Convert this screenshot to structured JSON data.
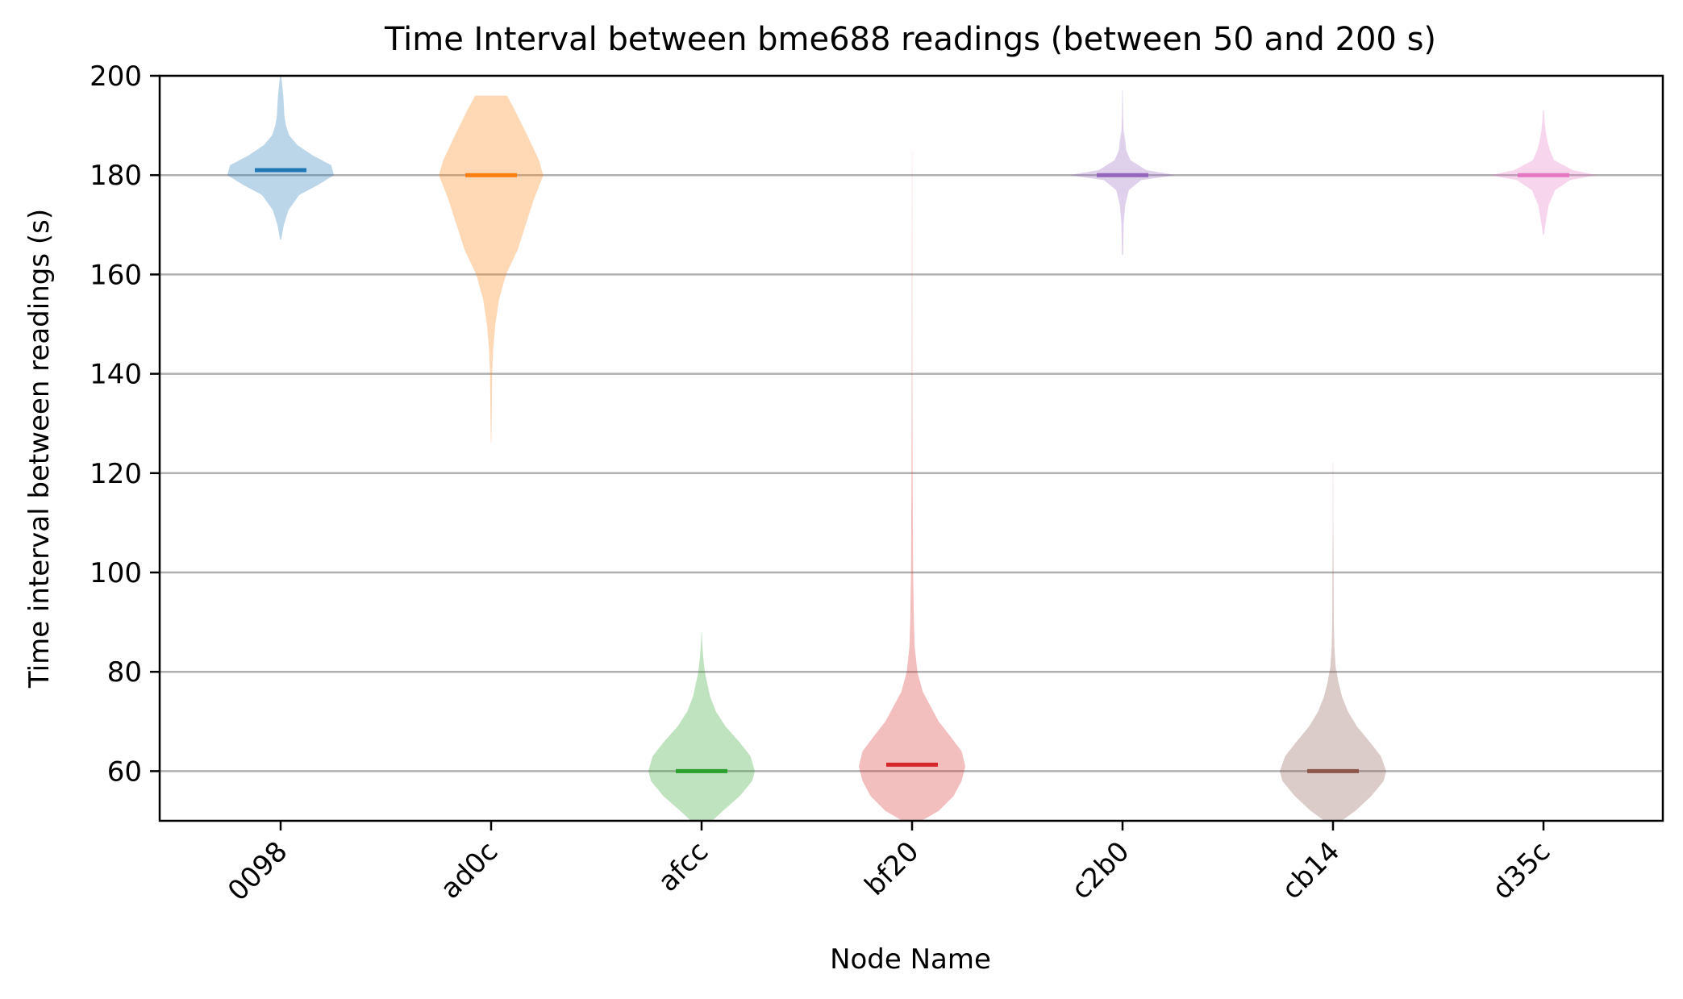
{
  "chart_data": {
    "type": "violin",
    "title": "Time Interval between bme688 readings (between 50 and 200 s)",
    "xlabel": "Node Name",
    "ylabel": "Time interval between readings (s)",
    "ylim": [
      50,
      200
    ],
    "yticks": [
      60,
      80,
      100,
      120,
      140,
      160,
      180,
      200
    ],
    "grid": "horizontal",
    "categories": [
      "0098",
      "ad0c",
      "afcc",
      "bf20",
      "c2b0",
      "cb14",
      "d35c"
    ],
    "medians": [
      181,
      180,
      60,
      61.3,
      180,
      60,
      180
    ],
    "colors": [
      "#1f77b4",
      "#ff7f0e",
      "#2ca02c",
      "#d62728",
      "#9467bd",
      "#8c564b",
      "#e377c2"
    ],
    "violins": [
      {
        "name": "0098",
        "range": [
          167,
          200
        ],
        "profile": [
          [
            167,
            0.01
          ],
          [
            170,
            0.06
          ],
          [
            173,
            0.15
          ],
          [
            176,
            0.35
          ],
          [
            178,
            0.7
          ],
          [
            180,
            1.0
          ],
          [
            182,
            0.95
          ],
          [
            184,
            0.6
          ],
          [
            186,
            0.32
          ],
          [
            188,
            0.16
          ],
          [
            190,
            0.1
          ],
          [
            192,
            0.07
          ],
          [
            194,
            0.06
          ],
          [
            196,
            0.05
          ],
          [
            198,
            0.03
          ],
          [
            200,
            0.01
          ]
        ]
      },
      {
        "name": "ad0c",
        "range": [
          126,
          196
        ],
        "profile": [
          [
            126,
            0.005
          ],
          [
            130,
            0.01
          ],
          [
            135,
            0.015
          ],
          [
            140,
            0.02
          ],
          [
            145,
            0.04
          ],
          [
            150,
            0.08
          ],
          [
            155,
            0.15
          ],
          [
            160,
            0.28
          ],
          [
            165,
            0.5
          ],
          [
            170,
            0.65
          ],
          [
            175,
            0.8
          ],
          [
            180,
            0.98
          ],
          [
            183,
            0.9
          ],
          [
            188,
            0.68
          ],
          [
            193,
            0.45
          ],
          [
            196,
            0.3
          ]
        ]
      },
      {
        "name": "afcc",
        "range": [
          50,
          88
        ],
        "profile": [
          [
            50,
            0.2
          ],
          [
            52,
            0.4
          ],
          [
            55,
            0.72
          ],
          [
            58,
            0.95
          ],
          [
            60,
            1.0
          ],
          [
            63,
            0.92
          ],
          [
            66,
            0.7
          ],
          [
            69,
            0.45
          ],
          [
            72,
            0.27
          ],
          [
            75,
            0.16
          ],
          [
            78,
            0.1
          ],
          [
            80,
            0.06
          ],
          [
            83,
            0.03
          ],
          [
            86,
            0.01
          ],
          [
            88,
            0.005
          ]
        ]
      },
      {
        "name": "bf20",
        "range": [
          50,
          185
        ],
        "profile": [
          [
            50,
            0.18
          ],
          [
            52,
            0.5
          ],
          [
            55,
            0.78
          ],
          [
            58,
            0.93
          ],
          [
            61,
            1.0
          ],
          [
            64,
            0.93
          ],
          [
            67,
            0.72
          ],
          [
            70,
            0.5
          ],
          [
            73,
            0.35
          ],
          [
            76,
            0.2
          ],
          [
            80,
            0.1
          ],
          [
            85,
            0.05
          ],
          [
            90,
            0.035
          ],
          [
            100,
            0.02
          ],
          [
            110,
            0.015
          ],
          [
            120,
            0.01
          ],
          [
            140,
            0.006
          ],
          [
            160,
            0.004
          ],
          [
            185,
            0.002
          ]
        ]
      },
      {
        "name": "c2b0",
        "range": [
          164,
          197
        ],
        "profile": [
          [
            164,
            0.01
          ],
          [
            170,
            0.02
          ],
          [
            174,
            0.05
          ],
          [
            177,
            0.12
          ],
          [
            179,
            0.35
          ],
          [
            180,
            1.0
          ],
          [
            181,
            0.45
          ],
          [
            183,
            0.15
          ],
          [
            185,
            0.07
          ],
          [
            187,
            0.05
          ],
          [
            189,
            0.02
          ],
          [
            192,
            0.01
          ],
          [
            197,
            0.005
          ]
        ]
      },
      {
        "name": "cb14",
        "range": [
          50,
          122
        ],
        "profile": [
          [
            50,
            0.16
          ],
          [
            52,
            0.42
          ],
          [
            55,
            0.72
          ],
          [
            58,
            0.95
          ],
          [
            60,
            1.0
          ],
          [
            63,
            0.9
          ],
          [
            66,
            0.68
          ],
          [
            69,
            0.45
          ],
          [
            72,
            0.28
          ],
          [
            75,
            0.17
          ],
          [
            78,
            0.1
          ],
          [
            81,
            0.05
          ],
          [
            85,
            0.025
          ],
          [
            90,
            0.015
          ],
          [
            100,
            0.01
          ],
          [
            110,
            0.005
          ],
          [
            122,
            0.003
          ]
        ]
      },
      {
        "name": "d35c",
        "range": [
          168,
          193
        ],
        "profile": [
          [
            168,
            0.01
          ],
          [
            171,
            0.05
          ],
          [
            174,
            0.1
          ],
          [
            177,
            0.22
          ],
          [
            179,
            0.5
          ],
          [
            180,
            1.0
          ],
          [
            181,
            0.55
          ],
          [
            183,
            0.2
          ],
          [
            185,
            0.12
          ],
          [
            187,
            0.07
          ],
          [
            189,
            0.04
          ],
          [
            191,
            0.02
          ],
          [
            193,
            0.01
          ]
        ]
      }
    ]
  }
}
